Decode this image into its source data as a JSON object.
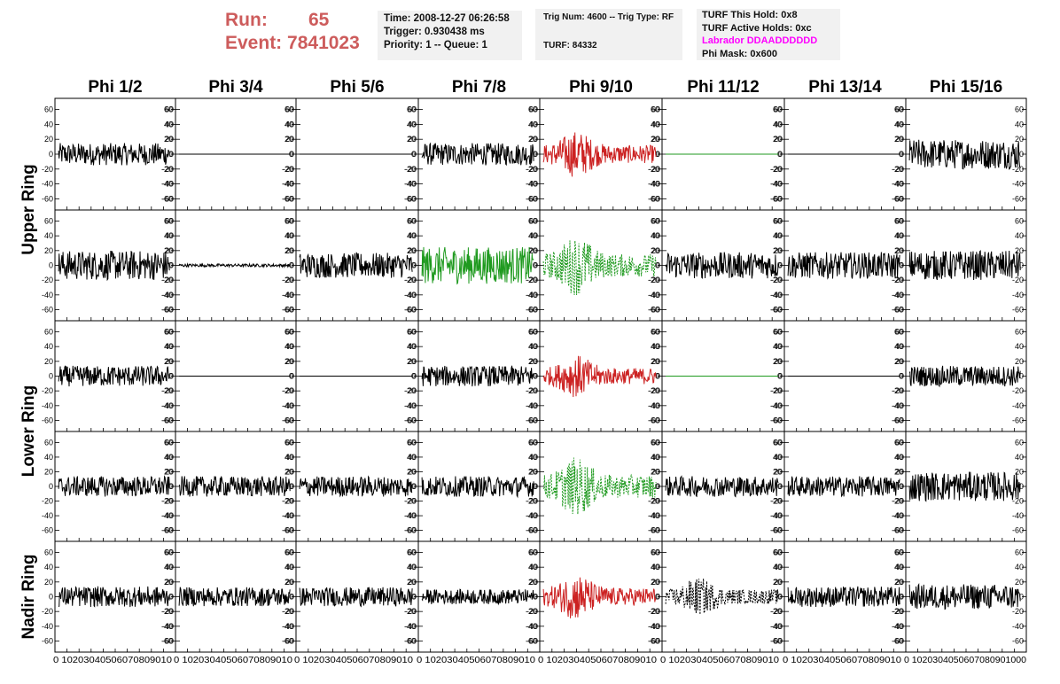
{
  "header": {
    "run_label": "Run:",
    "run_value": "65",
    "event_label": "Event:",
    "event_value": "7841023",
    "time": "Time: 2008-12-27 06:26:58",
    "trigger": "Trigger: 0.930438 ms",
    "priority": "Priority: 1 -- Queue: 1",
    "trig_num": "Trig Num: 4600 -- Trig Type: RF",
    "turf": "TURF: 84332",
    "turf_this_hold": "TURF This Hold: 0x8",
    "turf_active_holds": "TURF Active Holds: 0xc",
    "labrador": "Labrador DDAADDDDDD",
    "phi_mask": "Phi Mask: 0x600"
  },
  "colors": {
    "run_text": "#cd5c5c",
    "labrador_text": "#ff00ff",
    "trace_default": "#000000",
    "trace_red": "#cc2222",
    "trace_green": "#1f9a1f"
  },
  "chart_data": {
    "type": "line",
    "columns": [
      "Phi 1/2",
      "Phi 3/4",
      "Phi 5/6",
      "Phi 7/8",
      "Phi 9/10",
      "Phi 11/12",
      "Phi 13/14",
      "Phi 15/16"
    ],
    "ring_labels": [
      "Upper Ring",
      "Lower Ring",
      "Nadir Ring"
    ],
    "xlim": [
      0,
      100
    ],
    "ylim": [
      -75,
      75
    ],
    "y_ticks": [
      -60,
      -40,
      -20,
      0,
      20,
      40,
      60
    ],
    "x_ticks": [
      0,
      10,
      20,
      30,
      40,
      50,
      60,
      70,
      80,
      90,
      100
    ],
    "x_tick_label_sequence": "0 10203040506070809010",
    "x_tick_label_last": "0 1020304050607080901000",
    "rows": [
      {
        "ring": "Upper Ring",
        "channel": 1,
        "traces": [
          {
            "amp": 15,
            "style": "solid",
            "color": "trace_default"
          },
          {
            "amp": 0,
            "style": "solid",
            "color": "trace_default"
          },
          {
            "amp": 0,
            "style": "solid",
            "color": "trace_default"
          },
          {
            "amp": 15,
            "style": "solid",
            "color": "trace_default"
          },
          {
            "amp": 22,
            "style": "solid",
            "color": "trace_red"
          },
          {
            "amp": 0,
            "style": "solid",
            "color": "trace_green"
          },
          {
            "amp": 0,
            "style": "solid",
            "color": "trace_default"
          },
          {
            "amp": 20,
            "style": "solid",
            "color": "trace_default"
          }
        ]
      },
      {
        "ring": "Upper Ring",
        "channel": 2,
        "traces": [
          {
            "amp": 20,
            "style": "solid",
            "color": "trace_default"
          },
          {
            "amp": 2,
            "style": "solid",
            "color": "trace_default"
          },
          {
            "amp": 17,
            "style": "solid",
            "color": "trace_default"
          },
          {
            "amp": 25,
            "style": "solid",
            "color": "trace_green"
          },
          {
            "amp": 28,
            "style": "dashed",
            "color": "trace_green"
          },
          {
            "amp": 18,
            "style": "solid",
            "color": "trace_default"
          },
          {
            "amp": 18,
            "style": "solid",
            "color": "trace_default"
          },
          {
            "amp": 20,
            "style": "solid",
            "color": "trace_default"
          }
        ]
      },
      {
        "ring": "Lower Ring",
        "channel": 1,
        "traces": [
          {
            "amp": 14,
            "style": "solid",
            "color": "trace_default"
          },
          {
            "amp": 0,
            "style": "solid",
            "color": "trace_default"
          },
          {
            "amp": 0,
            "style": "solid",
            "color": "trace_default"
          },
          {
            "amp": 14,
            "style": "solid",
            "color": "trace_default"
          },
          {
            "amp": 20,
            "style": "solid",
            "color": "trace_red"
          },
          {
            "amp": 0,
            "style": "solid",
            "color": "trace_green"
          },
          {
            "amp": 0,
            "style": "solid",
            "color": "trace_default"
          },
          {
            "amp": 14,
            "style": "solid",
            "color": "trace_default"
          }
        ]
      },
      {
        "ring": "Lower Ring",
        "channel": 2,
        "traces": [
          {
            "amp": 14,
            "style": "solid",
            "color": "trace_default"
          },
          {
            "amp": 14,
            "style": "solid",
            "color": "trace_default"
          },
          {
            "amp": 14,
            "style": "solid",
            "color": "trace_default"
          },
          {
            "amp": 14,
            "style": "solid",
            "color": "trace_default"
          },
          {
            "amp": 28,
            "style": "dashed",
            "color": "trace_green"
          },
          {
            "amp": 14,
            "style": "solid",
            "color": "trace_default"
          },
          {
            "amp": 14,
            "style": "solid",
            "color": "trace_default"
          },
          {
            "amp": 20,
            "style": "solid",
            "color": "trace_default"
          }
        ]
      },
      {
        "ring": "Nadir Ring",
        "channel": 1,
        "traces": [
          {
            "amp": 14,
            "style": "solid",
            "color": "trace_default"
          },
          {
            "amp": 13,
            "style": "solid",
            "color": "trace_default"
          },
          {
            "amp": 13,
            "style": "solid",
            "color": "trace_default"
          },
          {
            "amp": 10,
            "style": "solid",
            "color": "trace_default"
          },
          {
            "amp": 22,
            "style": "solid",
            "color": "trace_red"
          },
          {
            "amp": 18,
            "style": "dashed",
            "color": "trace_default"
          },
          {
            "amp": 14,
            "style": "solid",
            "color": "trace_default"
          },
          {
            "amp": 17,
            "style": "solid",
            "color": "trace_default"
          }
        ]
      }
    ]
  }
}
